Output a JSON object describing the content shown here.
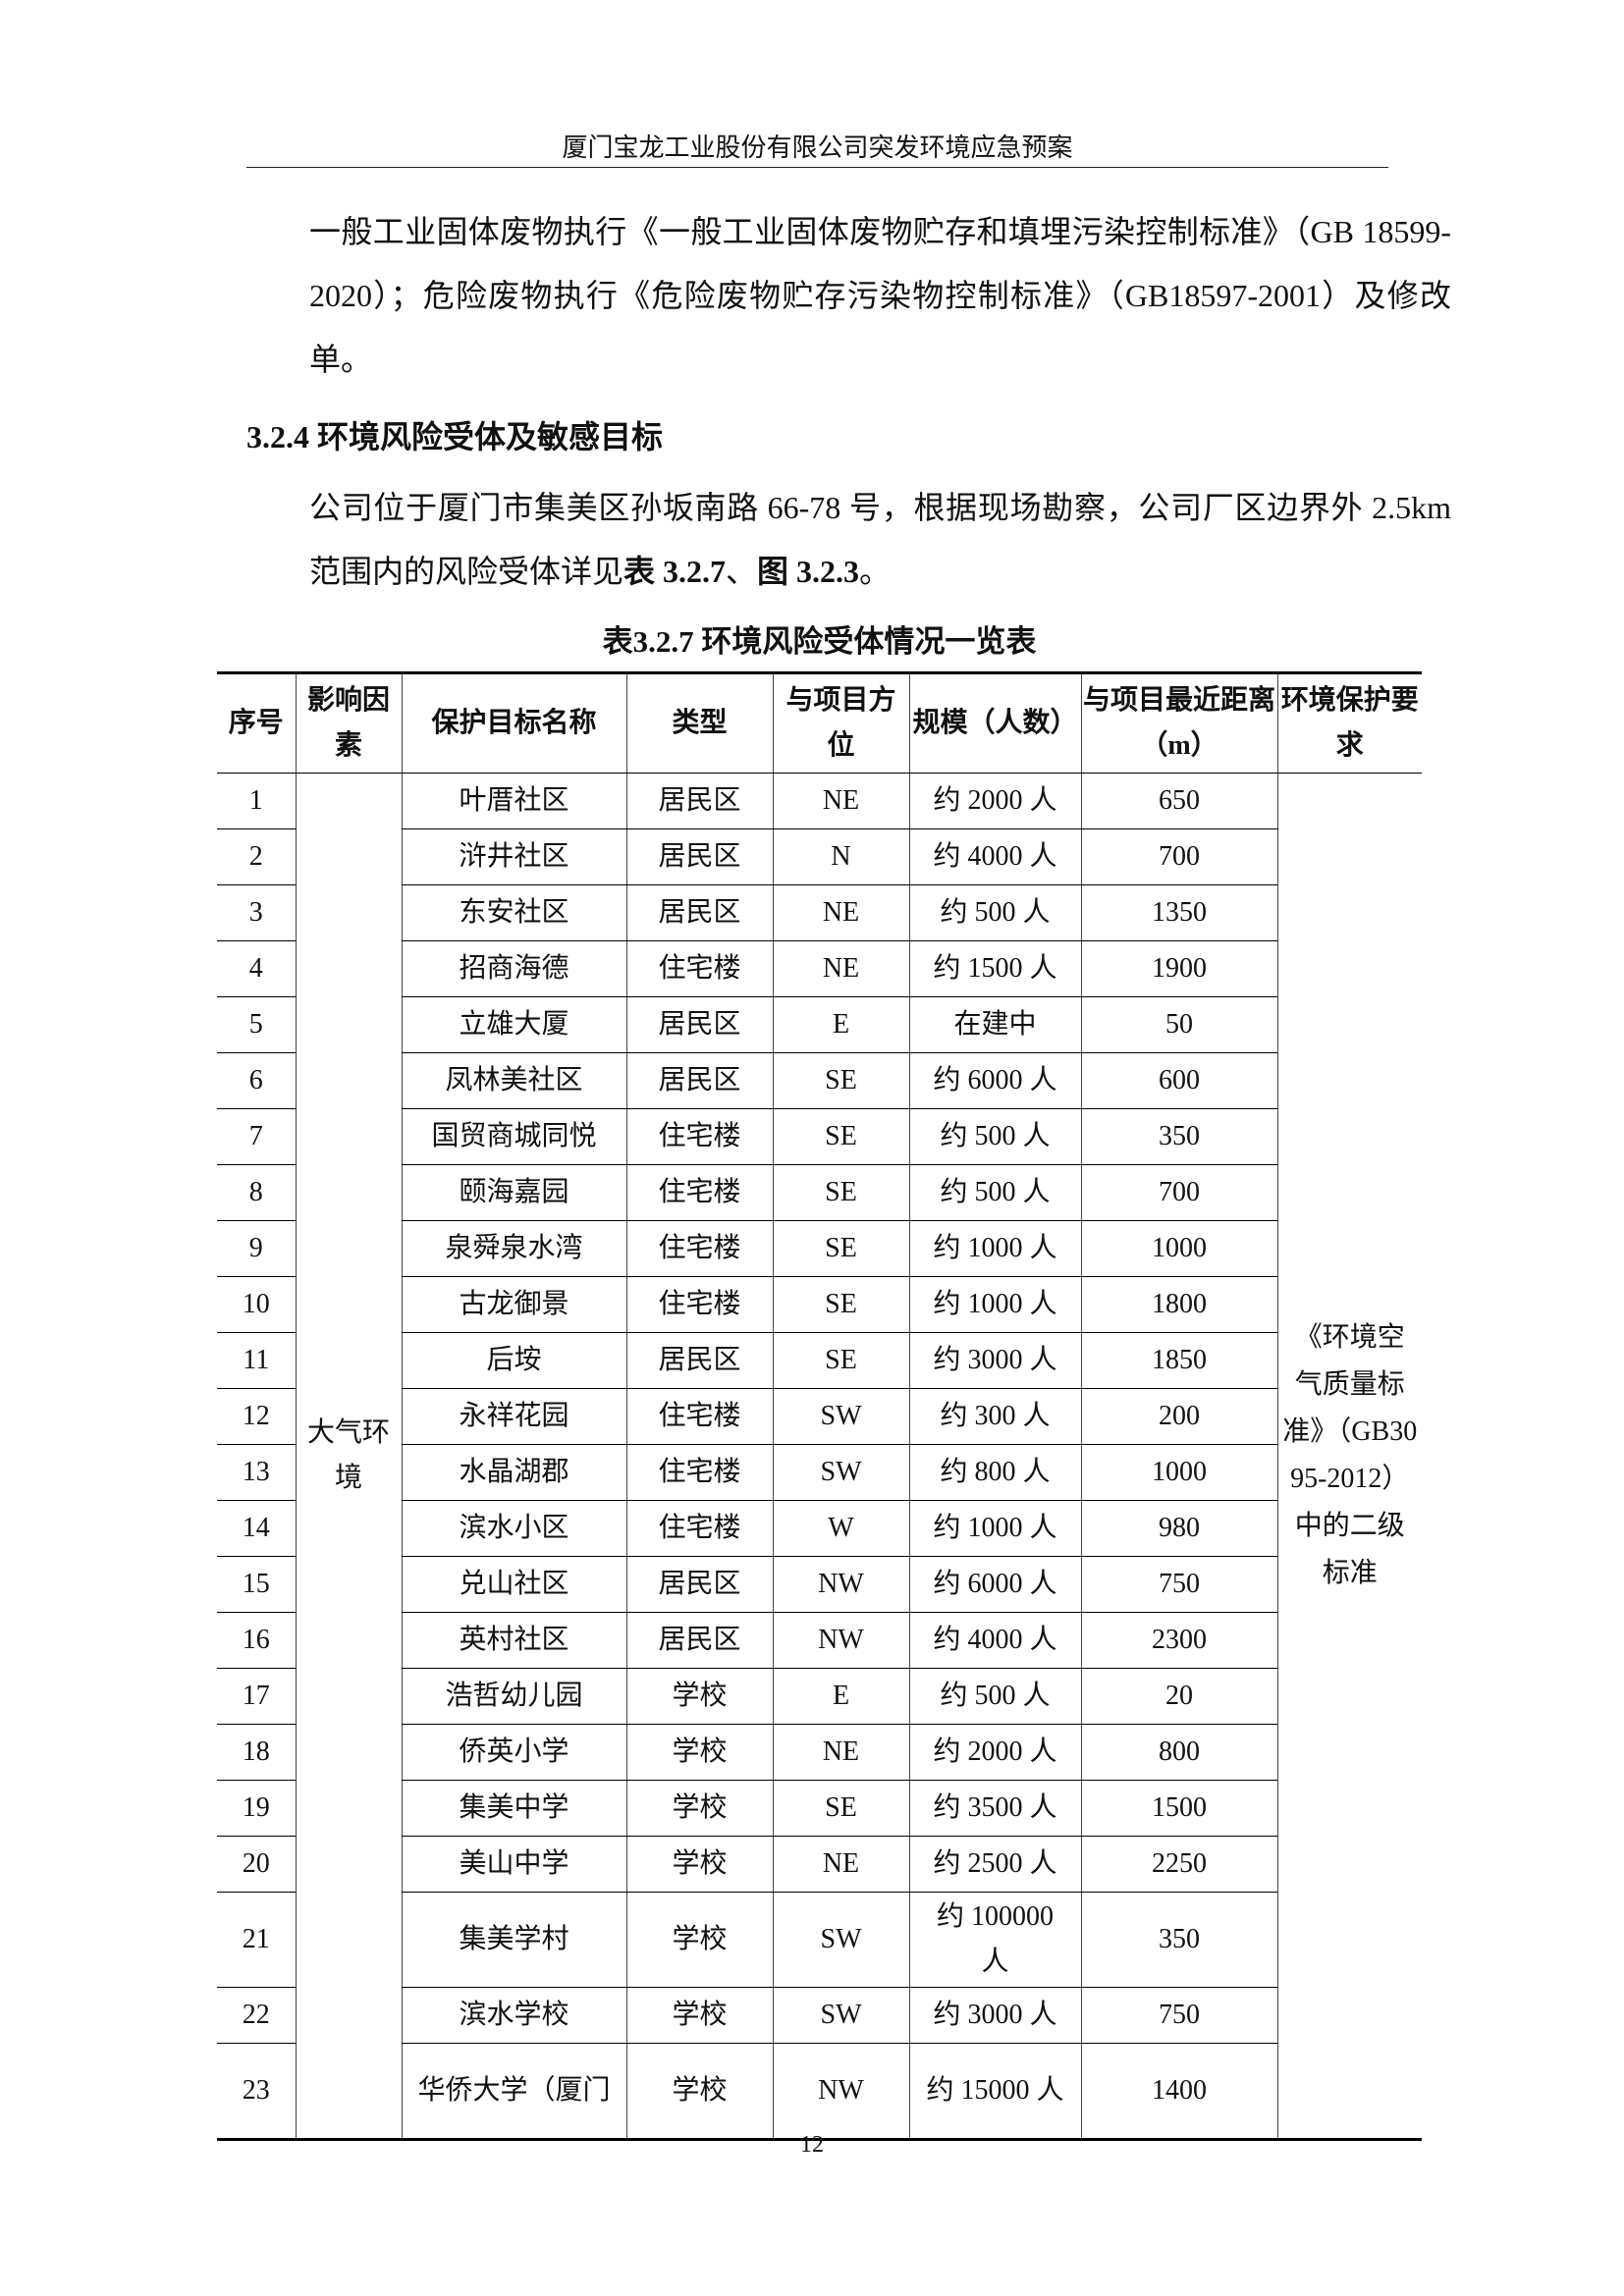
{
  "header": {
    "title": "厦门宝龙工业股份有限公司突发环境应急预案"
  },
  "paragraph1": "一般工业固体废物执行《一般工业固体废物贮存和填埋污染控制标准》（GB 18599-2020）；危险废物执行《危险废物贮存污染物控制标准》（GB18597-2001）及修改单。",
  "section": {
    "heading": "3.2.4 环境风险受体及敏感目标"
  },
  "paragraph2": {
    "text_before": "公司位于厦门市集美区孙坂南路 66-78 号，根据现场勘察，公司厂区边界外 2.5km 范围内的风险受体详见",
    "ref_table": "表 3.2.7",
    "separator": "、",
    "ref_figure": "图 3.2.3",
    "text_after": "。"
  },
  "table": {
    "caption": "表3.2.7 环境风险受体情况一览表",
    "columns": [
      "序号",
      "影响因素",
      "保护目标名称",
      "类型",
      "与项目方位",
      "规模（人数）",
      "与项目最近距离（m）",
      "环境保护要求"
    ],
    "factor": "大气环境",
    "requirement": "《环境空气质量标准》（GB3095-2012）中的二级标准",
    "rows": [
      [
        "1",
        "叶厝社区",
        "居民区",
        "NE",
        "约 2000 人",
        "650"
      ],
      [
        "2",
        "浒井社区",
        "居民区",
        "N",
        "约 4000 人",
        "700"
      ],
      [
        "3",
        "东安社区",
        "居民区",
        "NE",
        "约 500 人",
        "1350"
      ],
      [
        "4",
        "招商海德",
        "住宅楼",
        "NE",
        "约 1500 人",
        "1900"
      ],
      [
        "5",
        "立雄大厦",
        "居民区",
        "E",
        "在建中",
        "50"
      ],
      [
        "6",
        "凤林美社区",
        "居民区",
        "SE",
        "约 6000 人",
        "600"
      ],
      [
        "7",
        "国贸商城同悦",
        "住宅楼",
        "SE",
        "约 500 人",
        "350"
      ],
      [
        "8",
        "颐海嘉园",
        "住宅楼",
        "SE",
        "约 500 人",
        "700"
      ],
      [
        "9",
        "泉舜泉水湾",
        "住宅楼",
        "SE",
        "约 1000 人",
        "1000"
      ],
      [
        "10",
        "古龙御景",
        "住宅楼",
        "SE",
        "约 1000 人",
        "1800"
      ],
      [
        "11",
        "后垵",
        "居民区",
        "SE",
        "约 3000 人",
        "1850"
      ],
      [
        "12",
        "永祥花园",
        "住宅楼",
        "SW",
        "约 300 人",
        "200"
      ],
      [
        "13",
        "水晶湖郡",
        "住宅楼",
        "SW",
        "约 800 人",
        "1000"
      ],
      [
        "14",
        "滨水小区",
        "住宅楼",
        "W",
        "约 1000 人",
        "980"
      ],
      [
        "15",
        "兑山社区",
        "居民区",
        "NW",
        "约 6000 人",
        "750"
      ],
      [
        "16",
        "英村社区",
        "居民区",
        "NW",
        "约 4000 人",
        "2300"
      ],
      [
        "17",
        "浩哲幼儿园",
        "学校",
        "E",
        "约 500 人",
        "20"
      ],
      [
        "18",
        "侨英小学",
        "学校",
        "NE",
        "约 2000 人",
        "800"
      ],
      [
        "19",
        "集美中学",
        "学校",
        "SE",
        "约 3500 人",
        "1500"
      ],
      [
        "20",
        "美山中学",
        "学校",
        "NE",
        "约 2500 人",
        "2250"
      ],
      [
        "21",
        "集美学村",
        "学校",
        "SW",
        "约 100000 人",
        "350"
      ],
      [
        "22",
        "滨水学校",
        "学校",
        "SW",
        "约 3000 人",
        "750"
      ],
      [
        "23",
        "华侨大学（厦门",
        "学校",
        "NW",
        "约 15000 人",
        "1400"
      ]
    ]
  },
  "footer": {
    "page_number": "12"
  }
}
